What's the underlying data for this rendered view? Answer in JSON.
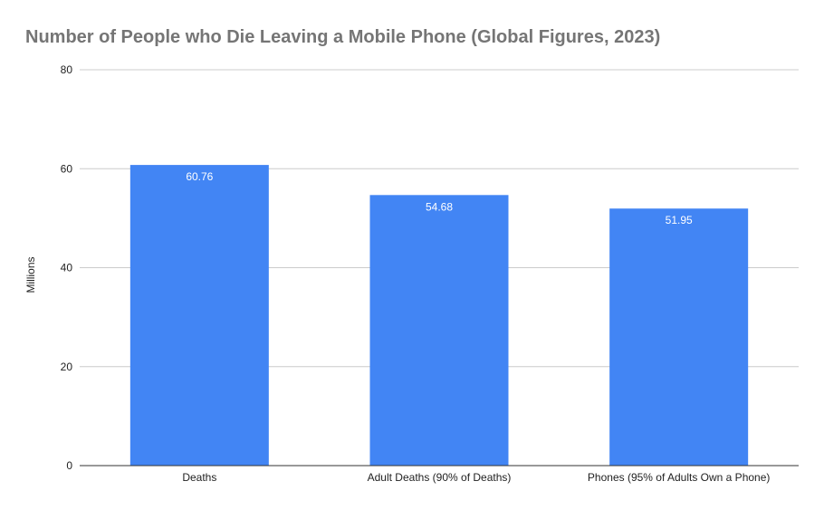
{
  "chart_data": {
    "type": "bar",
    "title": "Number of People who Die Leaving a Mobile Phone (Global Figures, 2023)",
    "xlabel": "",
    "ylabel": "Millions",
    "categories": [
      "Deaths",
      "Adult Deaths (90% of Deaths)",
      "Phones (95% of Adults Own a Phone)"
    ],
    "values": [
      60.76,
      54.68,
      51.95
    ],
    "data_labels": [
      "60.76",
      "54.68",
      "51.95"
    ],
    "ylim": [
      0,
      80
    ],
    "yticks": [
      0,
      20,
      40,
      60,
      80
    ],
    "ytick_labels": [
      "0",
      "20",
      "40",
      "60",
      "80"
    ],
    "grid": true,
    "legend": "none",
    "bar_color": "#4285f4",
    "gridline_color": "#cccccc",
    "baseline_color": "#333333",
    "title_color": "#757575"
  }
}
